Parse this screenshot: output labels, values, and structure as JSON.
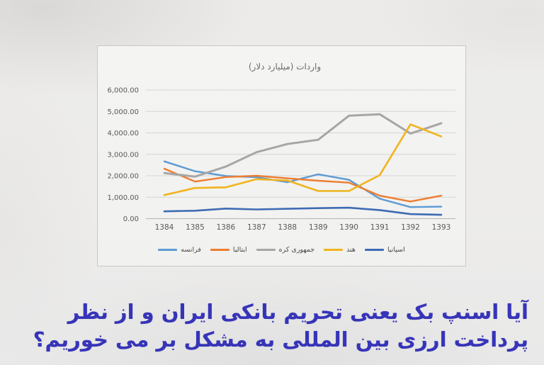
{
  "chart_data": {
    "type": "line",
    "title": "واردات (میلیارد دلار)",
    "categories": [
      "1384",
      "1385",
      "1386",
      "1387",
      "1388",
      "1389",
      "1390",
      "1391",
      "1392",
      "1393"
    ],
    "series": [
      {
        "name": "فرانسه",
        "color": "#5B9BD5",
        "stroke_width": 2.4,
        "values": [
          2670,
          2210,
          1990,
          1930,
          1700,
          2070,
          1810,
          930,
          540,
          560
        ]
      },
      {
        "name": "ایتالیا",
        "color": "#ED7D31",
        "stroke_width": 2.4,
        "values": [
          2330,
          1730,
          1940,
          2000,
          1880,
          1770,
          1680,
          1070,
          800,
          1070
        ]
      },
      {
        "name": "جمهوری کره",
        "color": "#A6A6A6",
        "stroke_width": 3.0,
        "values": [
          2130,
          1960,
          2430,
          3100,
          3480,
          3680,
          4800,
          4870,
          3970,
          4450
        ]
      },
      {
        "name": "هند",
        "color": "#F0B41E",
        "stroke_width": 2.6,
        "values": [
          1100,
          1430,
          1460,
          1840,
          1780,
          1290,
          1290,
          2030,
          4400,
          3830
        ]
      },
      {
        "name": "اسپانیا",
        "color": "#3E6BB4",
        "stroke_width": 2.6,
        "values": [
          340,
          370,
          470,
          430,
          460,
          490,
          510,
          400,
          210,
          180
        ]
      }
    ],
    "xlabel": "",
    "ylabel": "",
    "ylim": [
      0,
      6000
    ],
    "ytick_step": 1000,
    "ytick_labels": [
      "0.00",
      "1,000.00",
      "2,000.00",
      "3,000.00",
      "4,000.00",
      "5,000.00",
      "6,000.00"
    ],
    "grid": true,
    "legend_position": "bottom"
  },
  "headline": {
    "line1": "آیا اسنپ بک یعنی تحریم بانکی ایران و از نظر",
    "line2": "پرداخت ارزی بین المللی به مشکل بر می خوریم؟"
  },
  "style": {
    "headline_color": "#3634b8",
    "axis_text_color": "#595957",
    "grid_color": "#d5d5d3",
    "card_background": "#f3f3f1",
    "card_border": "#c8c8c6"
  }
}
